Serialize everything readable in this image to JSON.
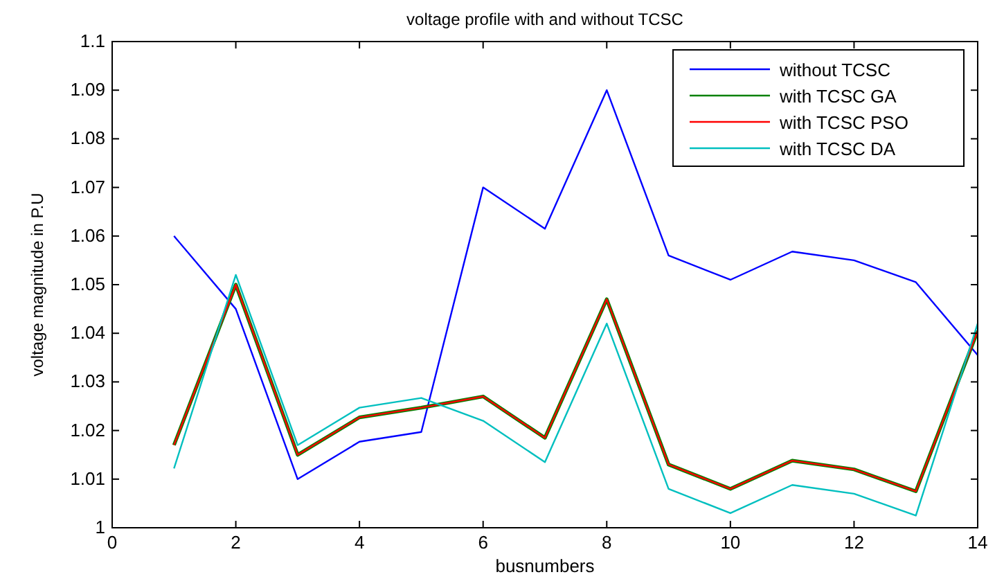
{
  "chart_data": {
    "type": "line",
    "title": "voltage profile with and without TCSC",
    "xlabel": "busnumbers",
    "ylabel": "voltage magnitude in P.U",
    "x": [
      1,
      2,
      3,
      4,
      5,
      6,
      7,
      8,
      9,
      10,
      11,
      12,
      13,
      14
    ],
    "series": [
      {
        "name": "without TCSC",
        "color": "#0000ff",
        "values": [
          1.06,
          1.045,
          1.01,
          1.0177,
          1.0197,
          1.07,
          1.0615,
          1.09,
          1.056,
          1.051,
          1.0568,
          1.055,
          1.0505,
          1.0355
        ]
      },
      {
        "name": "with TCSC GA",
        "color": "#008000",
        "values": [
          1.017,
          1.05,
          1.015,
          1.0227,
          1.0247,
          1.027,
          1.0185,
          1.047,
          1.013,
          1.008,
          1.0138,
          1.012,
          1.0075,
          1.0405
        ]
      },
      {
        "name": "with TCSC PSO",
        "color": "#ff0000",
        "values": [
          1.017,
          1.05,
          1.015,
          1.0227,
          1.0247,
          1.027,
          1.0185,
          1.047,
          1.013,
          1.008,
          1.0138,
          1.012,
          1.0075,
          1.0405
        ]
      },
      {
        "name": "with TCSC DA",
        "color": "#00bfbf",
        "values": [
          1.0122,
          1.052,
          1.017,
          1.0247,
          1.0267,
          1.022,
          1.0135,
          1.042,
          1.008,
          1.003,
          1.0088,
          1.007,
          1.0025,
          1.042
        ]
      }
    ],
    "xlim": [
      0,
      14
    ],
    "ylim": [
      1,
      1.1
    ],
    "xticks": [
      0,
      2,
      4,
      6,
      8,
      10,
      12,
      14
    ],
    "yticks": [
      1,
      1.01,
      1.02,
      1.03,
      1.04,
      1.05,
      1.06,
      1.07,
      1.08,
      1.09,
      1.1
    ],
    "grid": false,
    "legend": "top right",
    "line_style": "solid",
    "marker": "none"
  }
}
